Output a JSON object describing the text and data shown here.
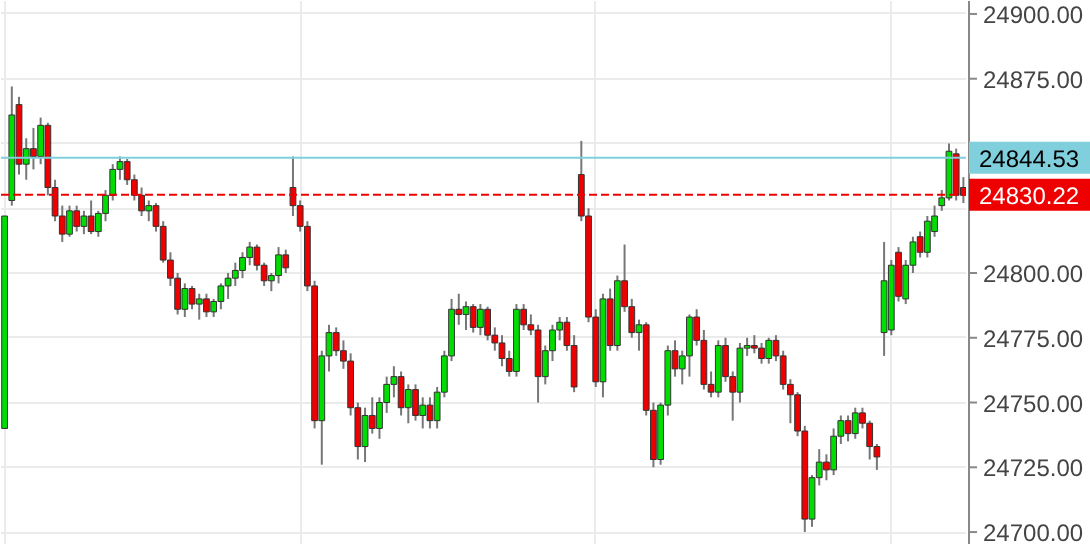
{
  "chart_data": {
    "type": "candlestick",
    "categories": [
      null,
      null,
      null,
      null,
      null,
      null,
      null,
      null,
      null,
      null,
      null,
      null,
      null,
      null,
      null,
      null,
      null,
      null,
      null,
      null,
      null,
      null,
      null,
      null,
      null,
      null,
      null,
      null,
      null,
      null,
      null,
      null,
      null,
      null,
      null,
      null,
      null,
      null,
      null,
      null,
      null,
      null,
      null,
      null,
      null,
      null,
      null,
      null,
      null,
      null,
      null,
      null,
      null,
      null,
      null,
      null,
      null,
      null,
      null,
      null,
      null,
      null,
      null,
      null,
      null,
      null,
      null,
      null,
      null,
      null,
      null,
      null,
      null,
      null,
      null,
      null,
      null,
      null,
      null,
      null,
      null,
      null,
      null,
      null,
      null,
      null,
      null,
      null,
      null,
      null,
      null,
      null,
      null,
      null,
      null,
      null,
      null,
      null,
      null,
      null,
      null,
      null,
      null,
      null,
      null,
      null,
      null,
      null,
      null,
      null,
      null,
      null,
      null,
      null,
      null,
      null,
      null,
      null,
      null,
      null,
      null,
      null,
      null,
      null,
      null,
      null,
      null,
      null,
      null,
      null,
      null,
      null,
      null,
      null
    ],
    "ohlc": [
      [
        24740,
        24822,
        24740,
        24822
      ],
      [
        24828,
        24872,
        24826,
        24861
      ],
      [
        24865,
        24868,
        24838,
        24842
      ],
      [
        24842,
        24852,
        24836,
        24848
      ],
      [
        24848,
        24856,
        24840,
        24845
      ],
      [
        24845,
        24860,
        24842,
        24857
      ],
      [
        24857,
        24858,
        24830,
        24833
      ],
      [
        24833,
        24836,
        24820,
        24822
      ],
      [
        24822,
        24826,
        24812,
        24815
      ],
      [
        24815,
        24826,
        24814,
        24824
      ],
      [
        24824,
        24826,
        24816,
        24818
      ],
      [
        24818,
        24824,
        24815,
        24822
      ],
      [
        24822,
        24828,
        24815,
        24816
      ],
      [
        24816,
        24824,
        24814,
        24823
      ],
      [
        24823,
        24832,
        24820,
        24830
      ],
      [
        24830,
        24842,
        24828,
        24840
      ],
      [
        24840,
        24845,
        24836,
        24843
      ],
      [
        24843,
        24844,
        24834,
        24836
      ],
      [
        24836,
        24838,
        24828,
        24830
      ],
      [
        24830,
        24833,
        24822,
        24824
      ],
      [
        24824,
        24828,
        24820,
        24826
      ],
      [
        24826,
        24827,
        24816,
        24818
      ],
      [
        24818,
        24820,
        24804,
        24805
      ],
      [
        24805,
        24808,
        24795,
        24798
      ],
      [
        24798,
        24800,
        24784,
        24786
      ],
      [
        24786,
        24796,
        24783,
        24794
      ],
      [
        24794,
        24795,
        24786,
        24788
      ],
      [
        24788,
        24792,
        24782,
        24790
      ],
      [
        24790,
        24792,
        24783,
        24785
      ],
      [
        24785,
        24790,
        24783,
        24789
      ],
      [
        24789,
        24796,
        24786,
        24795
      ],
      [
        24795,
        24800,
        24790,
        24798
      ],
      [
        24798,
        24804,
        24795,
        24801
      ],
      [
        24801,
        24808,
        24798,
        24806
      ],
      [
        24806,
        24812,
        24803,
        24810
      ],
      [
        24810,
        24811,
        24801,
        24803
      ],
      [
        24803,
        24804,
        24795,
        24797
      ],
      [
        24797,
        24800,
        24793,
        24799
      ],
      [
        24799,
        24810,
        24796,
        24807
      ],
      [
        24807,
        24809,
        24800,
        24802
      ],
      [
        24833,
        24845,
        24822,
        24826
      ],
      [
        24826,
        24828,
        24816,
        24818
      ],
      [
        24818,
        24820,
        24793,
        24795
      ],
      [
        24795,
        24797,
        24740,
        24743
      ],
      [
        24743,
        24770,
        24726,
        24768
      ],
      [
        24768,
        24780,
        24762,
        24777
      ],
      [
        24777,
        24779,
        24768,
        24770
      ],
      [
        24770,
        24774,
        24763,
        24766
      ],
      [
        24766,
        24769,
        24745,
        24748
      ],
      [
        24748,
        24750,
        24728,
        24733
      ],
      [
        24733,
        24748,
        24727,
        24745
      ],
      [
        24745,
        24752,
        24738,
        24740
      ],
      [
        24740,
        24752,
        24736,
        24750
      ],
      [
        24750,
        24760,
        24746,
        24757
      ],
      [
        24757,
        24764,
        24752,
        24760
      ],
      [
        24760,
        24762,
        24745,
        24748
      ],
      [
        24748,
        24757,
        24742,
        24755
      ],
      [
        24755,
        24757,
        24743,
        24745
      ],
      [
        24745,
        24752,
        24740,
        24749
      ],
      [
        24749,
        24752,
        24740,
        24743
      ],
      [
        24743,
        24756,
        24740,
        24754
      ],
      [
        24754,
        24770,
        24752,
        24768
      ],
      [
        24768,
        24790,
        24766,
        24786
      ],
      [
        24786,
        24792,
        24780,
        24784
      ],
      [
        24784,
        24789,
        24778,
        24787
      ],
      [
        24787,
        24788,
        24777,
        24779
      ],
      [
        24779,
        24788,
        24776,
        24786
      ],
      [
        24786,
        24787,
        24774,
        24776
      ],
      [
        24776,
        24779,
        24770,
        24773
      ],
      [
        24773,
        24776,
        24764,
        24767
      ],
      [
        24767,
        24770,
        24760,
        24762
      ],
      [
        24762,
        24788,
        24760,
        24786
      ],
      [
        24786,
        24788,
        24778,
        24780
      ],
      [
        24780,
        24784,
        24776,
        24778
      ],
      [
        24778,
        24780,
        24750,
        24760
      ],
      [
        24760,
        24772,
        24757,
        24770
      ],
      [
        24770,
        24780,
        24766,
        24778
      ],
      [
        24778,
        24783,
        24774,
        24781
      ],
      [
        24781,
        24783,
        24770,
        24772
      ],
      [
        24772,
        24776,
        24754,
        24756
      ],
      [
        24838,
        24851,
        24820,
        24822
      ],
      [
        24822,
        24825,
        24781,
        24783
      ],
      [
        24783,
        24786,
        24756,
        24758
      ],
      [
        24758,
        24792,
        24752,
        24790
      ],
      [
        24790,
        24794,
        24770,
        24772
      ],
      [
        24772,
        24799,
        24770,
        24797
      ],
      [
        24797,
        24811,
        24785,
        24787
      ],
      [
        24787,
        24790,
        24775,
        24777
      ],
      [
        24777,
        24782,
        24770,
        24780
      ],
      [
        24780,
        24781,
        24745,
        24747
      ],
      [
        24747,
        24750,
        24725,
        24728
      ],
      [
        24728,
        24750,
        24726,
        24749
      ],
      [
        24749,
        24772,
        24745,
        24770
      ],
      [
        24770,
        24774,
        24760,
        24763
      ],
      [
        24763,
        24770,
        24757,
        24768
      ],
      [
        24768,
        24784,
        24760,
        24783
      ],
      [
        24783,
        24786,
        24772,
        24774
      ],
      [
        24774,
        24778,
        24755,
        24757
      ],
      [
        24757,
        24762,
        24752,
        24754
      ],
      [
        24754,
        24774,
        24752,
        24772
      ],
      [
        24772,
        24775,
        24758,
        24760
      ],
      [
        24760,
        24762,
        24743,
        24754
      ],
      [
        24754,
        24773,
        24750,
        24771
      ],
      [
        24771,
        24775,
        24768,
        24772
      ],
      [
        24772,
        24776,
        24769,
        24771
      ],
      [
        24771,
        24773,
        24765,
        24767
      ],
      [
        24767,
        24775,
        24765,
        24774
      ],
      [
        24774,
        24776,
        24766,
        24768
      ],
      [
        24768,
        24770,
        24755,
        24757
      ],
      [
        24757,
        24759,
        24742,
        24753
      ],
      [
        24753,
        24754,
        24737,
        24739
      ],
      [
        24739,
        24741,
        24700,
        24705
      ],
      [
        24705,
        24722,
        24702,
        24721
      ],
      [
        24721,
        24732,
        24718,
        24727
      ],
      [
        24727,
        24730,
        24720,
        24724
      ],
      [
        24724,
        24740,
        24722,
        24737
      ],
      [
        24737,
        24745,
        24734,
        24743
      ],
      [
        24743,
        24745,
        24735,
        24738
      ],
      [
        24738,
        24748,
        24736,
        24746
      ],
      [
        24746,
        24748,
        24740,
        24742
      ],
      [
        24742,
        24743,
        24728,
        24733
      ],
      [
        24733,
        24734,
        24724,
        24729
      ],
      [
        24777,
        24812,
        24768,
        24797
      ],
      [
        24778,
        24805,
        24776,
        24803
      ],
      [
        24808,
        24810,
        24789,
        24791
      ],
      [
        24790,
        24805,
        24788,
        24803
      ],
      [
        24803,
        24814,
        24800,
        24812
      ],
      [
        24814,
        24816,
        24806,
        24808
      ],
      [
        24808,
        24822,
        24806,
        24820
      ],
      [
        24816,
        24826,
        24814,
        24822
      ],
      [
        24826,
        24832,
        24824,
        24829
      ],
      [
        24829,
        24850,
        24828,
        24847
      ],
      [
        24846,
        24848,
        24828,
        24830
      ],
      [
        24833,
        24837,
        24827,
        24830
      ]
    ],
    "colors": [
      "#00dd00",
      "#00dd00",
      "#ee0000",
      "#00dd00",
      "#ee0000",
      "#00dd00",
      "#ee0000",
      "#ee0000",
      "#ee0000",
      "#00dd00",
      "#ee0000",
      "#00dd00",
      "#ee0000",
      "#00dd00",
      "#00dd00",
      "#00dd00",
      "#00dd00",
      "#ee0000",
      "#ee0000",
      "#ee0000",
      "#00dd00",
      "#ee0000",
      "#ee0000",
      "#ee0000",
      "#ee0000",
      "#00dd00",
      "#ee0000",
      "#00dd00",
      "#ee0000",
      "#00dd00",
      "#00dd00",
      "#00dd00",
      "#00dd00",
      "#00dd00",
      "#00dd00",
      "#ee0000",
      "#ee0000",
      "#00dd00",
      "#00dd00",
      "#ee0000",
      "#ee0000",
      "#ee0000",
      "#ee0000",
      "#ee0000",
      "#00dd00",
      "#00dd00",
      "#ee0000",
      "#ee0000",
      "#ee0000",
      "#ee0000",
      "#00dd00",
      "#ee0000",
      "#00dd00",
      "#00dd00",
      "#00dd00",
      "#ee0000",
      "#00dd00",
      "#ee0000",
      "#00dd00",
      "#ee0000",
      "#00dd00",
      "#00dd00",
      "#00dd00",
      "#ee0000",
      "#00dd00",
      "#ee0000",
      "#00dd00",
      "#ee0000",
      "#ee0000",
      "#ee0000",
      "#ee0000",
      "#00dd00",
      "#ee0000",
      "#ee0000",
      "#ee0000",
      "#00dd00",
      "#00dd00",
      "#00dd00",
      "#ee0000",
      "#ee0000",
      "#ee0000",
      "#ee0000",
      "#ee0000",
      "#00dd00",
      "#ee0000",
      "#00dd00",
      "#ee0000",
      "#ee0000",
      "#00dd00",
      "#ee0000",
      "#ee0000",
      "#00dd00",
      "#00dd00",
      "#ee0000",
      "#00dd00",
      "#00dd00",
      "#ee0000",
      "#ee0000",
      "#ee0000",
      "#00dd00",
      "#ee0000",
      "#ee0000",
      "#00dd00",
      "#00dd00",
      "#ee0000",
      "#ee0000",
      "#00dd00",
      "#ee0000",
      "#ee0000",
      "#ee0000",
      "#ee0000",
      "#ee0000",
      "#00dd00",
      "#00dd00",
      "#ee0000",
      "#00dd00",
      "#00dd00",
      "#ee0000",
      "#00dd00",
      "#ee0000",
      "#ee0000",
      "#ee0000",
      "#00dd00",
      "#00dd00",
      "#ee0000",
      "#00dd00",
      "#00dd00",
      "#ee0000",
      "#00dd00",
      "#00dd00",
      "#00dd00",
      "#00dd00",
      "#ee0000",
      "#ee0000"
    ],
    "ylim": [
      24695,
      24905
    ],
    "yticks": [
      {
        "value": 24700,
        "label": "24700.00"
      },
      {
        "value": 24725,
        "label": "24725.00"
      },
      {
        "value": 24750,
        "label": "24750.00"
      },
      {
        "value": 24775,
        "label": "24775.00"
      },
      {
        "value": 24800,
        "label": "24800.00"
      },
      {
        "value": 24825,
        "label": null
      },
      {
        "value": 24850,
        "label": null
      },
      {
        "value": 24875,
        "label": "24875.00"
      },
      {
        "value": 24900,
        "label": "24900.00"
      }
    ],
    "grid": true,
    "tick_labels": "y",
    "ref_lines": [
      {
        "axis": "y",
        "value": 24844.53,
        "label": "24844.53",
        "color": "#7fcfdc",
        "line_style": "solid"
      },
      {
        "axis": "y",
        "value": 24830.22,
        "label": "24830.22",
        "color": "#ee0000",
        "line_style": "dashed"
      }
    ]
  }
}
